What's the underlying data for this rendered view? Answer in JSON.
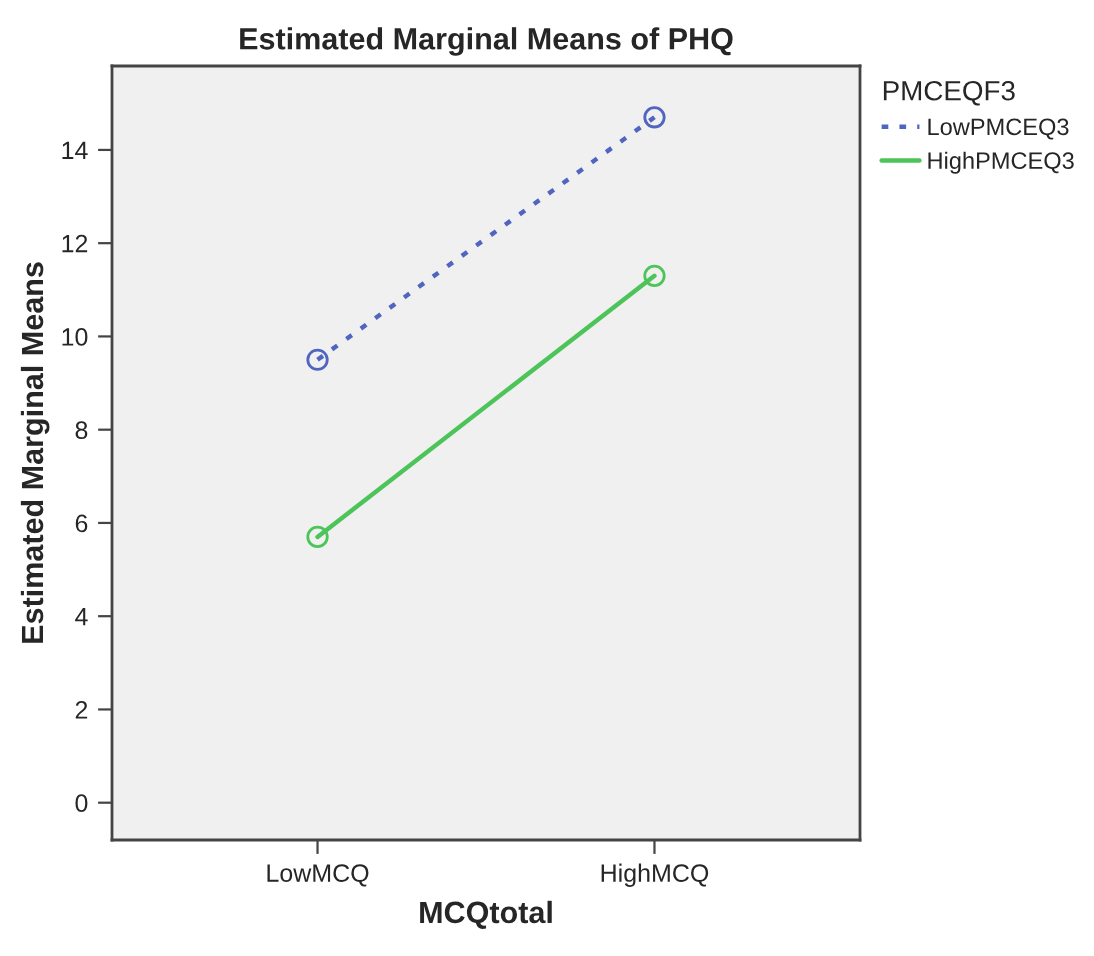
{
  "chart_data": {
    "type": "line",
    "title": "Estimated Marginal Means of PHQ",
    "xlabel": "MCQtotal",
    "ylabel": "Estimated Marginal Means",
    "legend_title": "PMCEQF3",
    "categories": [
      "LowMCQ",
      "HighMCQ"
    ],
    "series": [
      {
        "name": "LowPMCEQ3",
        "color": "#5164c0",
        "values": [
          9.5,
          14.7
        ],
        "line_style": "dotted"
      },
      {
        "name": "HighPMCEQ3",
        "color": "#4cc45a",
        "values": [
          5.7,
          11.3
        ],
        "line_style": "solid"
      }
    ],
    "ylim": [
      -0.8,
      15.8
    ],
    "yticks": [
      0,
      2,
      4,
      6,
      8,
      10,
      12,
      14
    ],
    "marker": "circle",
    "legend": "top right",
    "grid": false
  }
}
